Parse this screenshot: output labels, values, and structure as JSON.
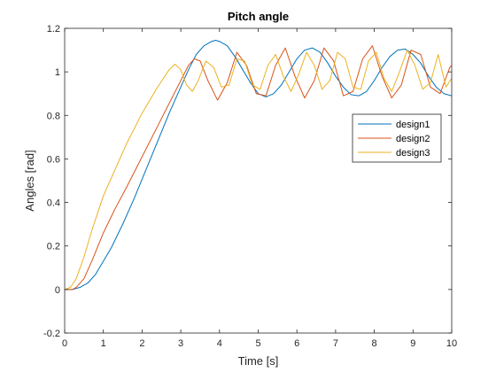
{
  "chart_data": {
    "type": "line",
    "title": "Pitch angle",
    "xlabel": "Time [s]",
    "ylabel": "Angles [rad]",
    "xlim": [
      0,
      10
    ],
    "ylim": [
      -0.2,
      1.2
    ],
    "xticks": [
      0,
      1,
      2,
      3,
      4,
      5,
      6,
      7,
      8,
      9,
      10
    ],
    "yticks": [
      -0.2,
      0,
      0.2,
      0.4,
      0.6,
      0.8,
      1,
      1.2
    ],
    "xtick_labels": [
      "0",
      "1",
      "2",
      "3",
      "4",
      "5",
      "6",
      "7",
      "8",
      "9",
      "10"
    ],
    "ytick_labels": [
      "-0.2",
      "0",
      "0.2",
      "0.4",
      "0.6",
      "0.8",
      "1",
      "1.2"
    ],
    "grid": false,
    "legend_position": "right",
    "series": [
      {
        "name": "design1",
        "color": "#0072BD",
        "x": [
          0,
          0.2,
          0.4,
          0.6,
          0.8,
          1.0,
          1.2,
          1.5,
          1.8,
          2.1,
          2.4,
          2.7,
          3.0,
          3.2,
          3.4,
          3.6,
          3.8,
          3.9,
          4.0,
          4.2,
          4.4,
          4.6,
          4.8,
          5.0,
          5.2,
          5.4,
          5.6,
          5.8,
          6.0,
          6.2,
          6.4,
          6.6,
          6.8,
          7.0,
          7.2,
          7.4,
          7.6,
          7.8,
          8.0,
          8.2,
          8.4,
          8.6,
          8.8,
          9.0,
          9.2,
          9.4,
          9.6,
          9.8,
          10.0
        ],
        "y": [
          0,
          0.0,
          0.01,
          0.03,
          0.07,
          0.13,
          0.19,
          0.3,
          0.42,
          0.55,
          0.68,
          0.81,
          0.93,
          1.01,
          1.08,
          1.12,
          1.14,
          1.145,
          1.14,
          1.12,
          1.07,
          1.01,
          0.95,
          0.9,
          0.885,
          0.9,
          0.94,
          1.0,
          1.06,
          1.1,
          1.11,
          1.09,
          1.04,
          0.98,
          0.93,
          0.895,
          0.89,
          0.91,
          0.96,
          1.02,
          1.07,
          1.1,
          1.105,
          1.08,
          1.04,
          0.98,
          0.93,
          0.9,
          0.89
        ]
      },
      {
        "name": "design2",
        "color": "#D95319",
        "x": [
          0,
          0.2,
          0.3,
          0.5,
          0.7,
          1.0,
          1.3,
          1.6,
          2.0,
          2.4,
          2.8,
          3.0,
          3.2,
          3.35,
          3.5,
          3.7,
          3.95,
          4.2,
          4.45,
          4.7,
          4.95,
          5.2,
          5.45,
          5.7,
          5.95,
          6.2,
          6.45,
          6.7,
          6.95,
          7.2,
          7.45,
          7.7,
          7.95,
          8.2,
          8.45,
          8.7,
          8.95,
          9.2,
          9.45,
          9.7,
          9.95,
          10.0
        ],
        "y": [
          0,
          0.0,
          0.01,
          0.05,
          0.13,
          0.26,
          0.37,
          0.47,
          0.61,
          0.75,
          0.89,
          0.96,
          1.03,
          1.06,
          1.05,
          0.96,
          0.87,
          0.95,
          1.09,
          1.03,
          0.9,
          0.89,
          1.03,
          1.11,
          0.98,
          0.88,
          0.96,
          1.11,
          1.05,
          0.89,
          0.91,
          1.06,
          1.12,
          0.98,
          0.88,
          0.94,
          1.1,
          1.08,
          0.93,
          0.9,
          1.02,
          1.03
        ]
      },
      {
        "name": "design3",
        "color": "#EDB120",
        "x": [
          0,
          0.15,
          0.3,
          0.5,
          0.7,
          1.0,
          1.3,
          1.6,
          2.0,
          2.4,
          2.7,
          2.85,
          3.0,
          3.15,
          3.3,
          3.45,
          3.65,
          3.85,
          4.05,
          4.25,
          4.45,
          4.65,
          4.85,
          5.05,
          5.25,
          5.45,
          5.65,
          5.85,
          6.05,
          6.25,
          6.45,
          6.65,
          6.85,
          7.05,
          7.25,
          7.45,
          7.65,
          7.85,
          8.05,
          8.25,
          8.45,
          8.65,
          8.85,
          9.05,
          9.25,
          9.45,
          9.65,
          9.85,
          10.0
        ],
        "y": [
          0,
          0.01,
          0.05,
          0.15,
          0.27,
          0.43,
          0.55,
          0.67,
          0.81,
          0.93,
          1.01,
          1.035,
          1.01,
          0.94,
          0.91,
          0.96,
          1.05,
          1.02,
          0.93,
          0.94,
          1.06,
          1.05,
          0.94,
          0.92,
          1.03,
          1.08,
          0.98,
          0.91,
          0.99,
          1.09,
          1.03,
          0.92,
          0.96,
          1.09,
          1.06,
          0.93,
          0.92,
          1.05,
          1.09,
          0.97,
          0.91,
          1.0,
          1.1,
          1.03,
          0.92,
          0.95,
          1.08,
          0.93,
          0.97
        ]
      }
    ]
  }
}
